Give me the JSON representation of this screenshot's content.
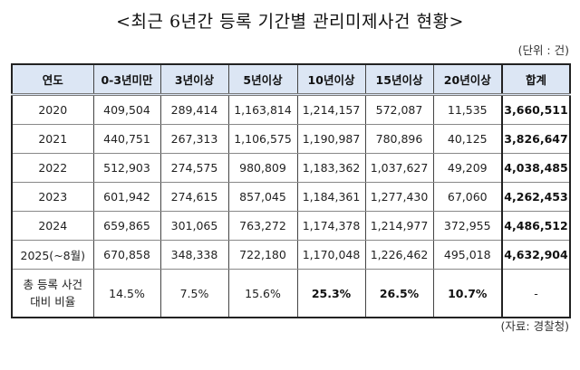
{
  "title": "<최근 6년간 등록 기간별 관리미제사건 현황>",
  "unit": "(단위 : 건)",
  "source": "(자료: 경찰청)",
  "table": {
    "headers": [
      "연도",
      "0-3년미만",
      "3년이상",
      "5년이상",
      "10년이상",
      "15년이상",
      "20년이상",
      "합계"
    ],
    "rows": [
      [
        "2020",
        "409,504",
        "289,414",
        "1,163,814",
        "1,214,157",
        "572,087",
        "11,535",
        "3,660,511"
      ],
      [
        "2021",
        "440,751",
        "267,313",
        "1,106,575",
        "1,190,987",
        "780,896",
        "40,125",
        "3,826,647"
      ],
      [
        "2022",
        "512,903",
        "274,575",
        "980,809",
        "1,183,362",
        "1,037,627",
        "49,209",
        "4,038,485"
      ],
      [
        "2023",
        "601,942",
        "274,615",
        "857,045",
        "1,184,361",
        "1,277,430",
        "67,060",
        "4,262,453"
      ],
      [
        "2024",
        "659,865",
        "301,065",
        "763,272",
        "1,174,378",
        "1,214,977",
        "372,955",
        "4,486,512"
      ],
      [
        "2025(~8월)",
        "670,858",
        "348,338",
        "722,180",
        "1,170,048",
        "1,226,462",
        "495,018",
        "4,632,904"
      ]
    ],
    "ratio_row": {
      "label_line1": "총 등록 사건",
      "label_line2": "대비 비율",
      "values": [
        "14.5%",
        "7.5%",
        "15.6%",
        "25.3%",
        "26.5%",
        "10.7%",
        "-"
      ]
    }
  },
  "colors": {
    "header_bg": "#dce6f4",
    "border": "#222222"
  }
}
